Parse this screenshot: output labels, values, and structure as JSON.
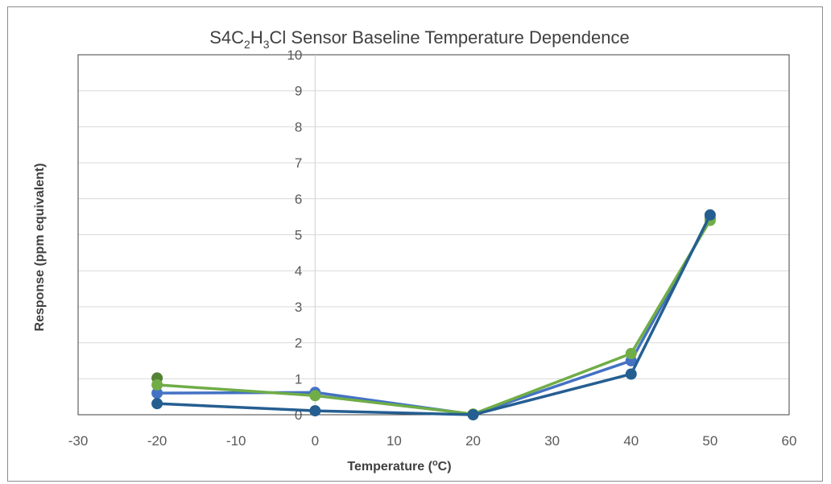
{
  "chart_data": {
    "type": "line",
    "title": {
      "prefix": "S4C",
      "sub1": "2",
      "mid": "H",
      "sub2": "3",
      "suffix": "Cl Sensor Baseline Temperature Dependence"
    },
    "xlabel": {
      "main": "Temperature (",
      "sup": "o",
      "end": "C)"
    },
    "ylabel": "Response (ppm equivalent)",
    "xlim": [
      -30,
      60
    ],
    "ylim": [
      0,
      10
    ],
    "x_ticks": [
      "-30",
      "-20",
      "-10",
      "0",
      "10",
      "20",
      "30",
      "40",
      "50",
      "60"
    ],
    "y_ticks": [
      "0",
      "1",
      "2",
      "3",
      "4",
      "5",
      "6",
      "7",
      "8",
      "9",
      "10"
    ],
    "grid": "horizontal",
    "legend": "none",
    "series": [
      {
        "color": "#4472c4",
        "x": [
          -20,
          0,
          20,
          40,
          50
        ],
        "y": [
          0.6,
          0.62,
          0.01,
          1.5,
          5.45
        ]
      },
      {
        "color": "#548235",
        "x": [
          -20
        ],
        "y": [
          1.02
        ]
      },
      {
        "color": "#70ad47",
        "x": [
          -20,
          0,
          20,
          40,
          50
        ],
        "y": [
          0.83,
          0.53,
          0.02,
          1.7,
          5.4
        ]
      },
      {
        "color": "#255e91",
        "x": [
          -20,
          0,
          20,
          40,
          50
        ],
        "y": [
          0.31,
          0.11,
          0.0,
          1.13,
          5.55
        ]
      }
    ]
  }
}
